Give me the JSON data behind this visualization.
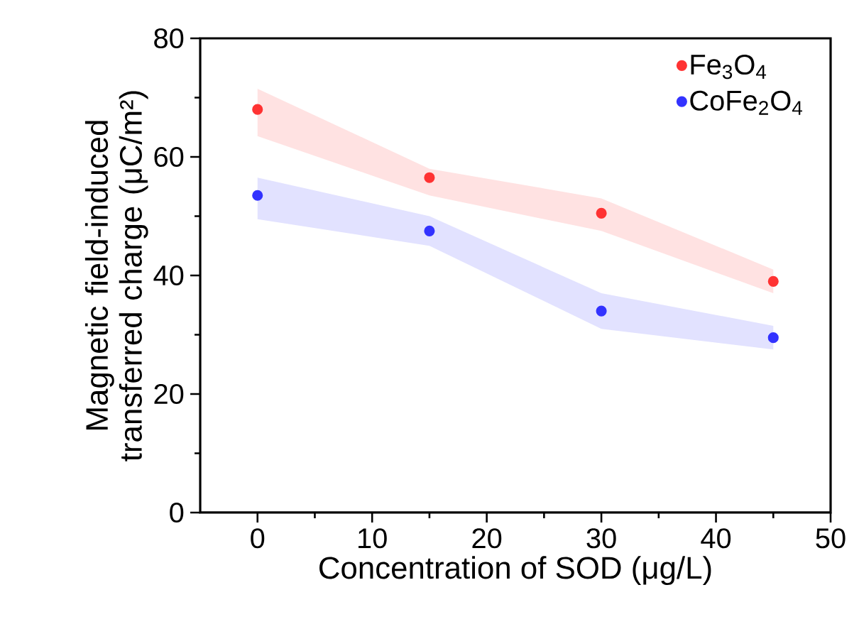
{
  "chart_data": {
    "type": "scatter",
    "xlabel": "Concentration of SOD (μg/L)",
    "ylabel": "Magnetic field-induced transferred charge (μC/m²)",
    "x": [
      0,
      15,
      30,
      45
    ],
    "series": [
      {
        "name": "Fe$_{3}$O$_{4}$",
        "color": "#ff3333",
        "values": [
          68,
          56.5,
          50.5,
          39
        ],
        "lower": [
          63.5,
          53.5,
          47.5,
          37
        ],
        "upper": [
          71.5,
          58,
          53,
          41
        ]
      },
      {
        "name": "CoFe$_{2}$O$_{4}$",
        "color": "#3333ff",
        "values": [
          53.5,
          47.5,
          34,
          29.5
        ],
        "lower": [
          49.5,
          45,
          31,
          27.5
        ],
        "upper": [
          56.5,
          50,
          37,
          31.5
        ]
      }
    ],
    "xlim": [
      -5,
      50
    ],
    "xticks": [
      0,
      10,
      20,
      30,
      40,
      50
    ],
    "ylim": [
      0,
      80
    ],
    "yticks": [
      0,
      20,
      40,
      60,
      80
    ],
    "marker": "circle",
    "legend": "top right",
    "grid": false
  }
}
